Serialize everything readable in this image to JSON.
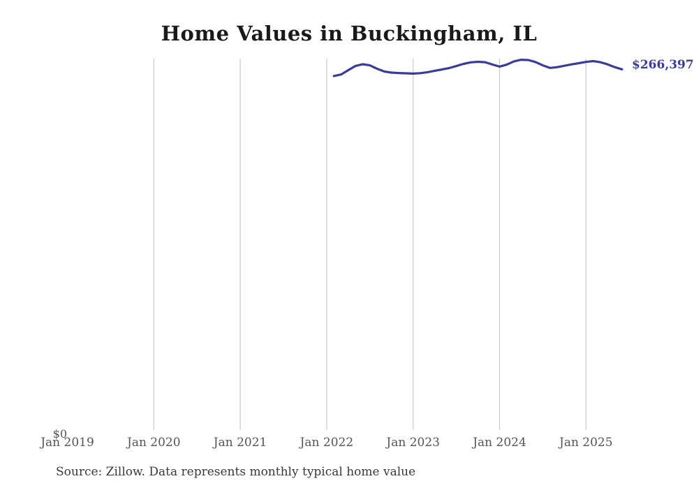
{
  "chart": {
    "title": "Home Values in Buckingham, IL",
    "y_zero_label": "$0",
    "end_label": "$266,397",
    "source_note": "Source: Zillow. Data represents monthly typical home value",
    "x_tick_labels": [
      "Jan 2019",
      "Jan 2020",
      "Jan 2021",
      "Jan 2022",
      "Jan 2023",
      "Jan 2024",
      "Jan 2025"
    ],
    "colors": {
      "line": "#3b3b99",
      "gridline": "#c9c9c9",
      "title_text": "#1a1a1a",
      "axis_text": "#555555",
      "source_text": "#383838"
    }
  },
  "chart_data": {
    "type": "line",
    "title": "Home Values in Buckingham, IL",
    "series_name": "Typical home value (monthly)",
    "x": [
      "2022-02",
      "2022-03",
      "2022-04",
      "2022-05",
      "2022-06",
      "2022-07",
      "2022-08",
      "2022-09",
      "2022-10",
      "2022-11",
      "2022-12",
      "2023-01",
      "2023-02",
      "2023-03",
      "2023-04",
      "2023-05",
      "2023-06",
      "2023-07",
      "2023-08",
      "2023-09",
      "2023-10",
      "2023-11",
      "2023-12",
      "2024-01",
      "2024-02",
      "2024-03",
      "2024-04",
      "2024-05",
      "2024-06",
      "2024-07",
      "2024-08",
      "2024-09",
      "2024-10",
      "2024-11",
      "2024-12",
      "2025-01",
      "2025-02",
      "2025-03",
      "2025-04",
      "2025-05",
      "2025-06"
    ],
    "values": [
      261500,
      262600,
      265800,
      268900,
      270100,
      269300,
      266800,
      264800,
      264000,
      263700,
      263500,
      263300,
      263600,
      264300,
      265300,
      266300,
      267300,
      268800,
      270400,
      271500,
      271900,
      271600,
      269900,
      268400,
      269800,
      272200,
      273400,
      273200,
      271700,
      269300,
      267400,
      268000,
      269000,
      270000,
      270900,
      271800,
      272400,
      271600,
      270000,
      268000,
      266397
    ],
    "last_value_label": "$266,397",
    "xlabel": "",
    "ylabel": "",
    "x_axis_ticks": [
      "Jan 2019",
      "Jan 2020",
      "Jan 2021",
      "Jan 2022",
      "Jan 2023",
      "Jan 2024",
      "Jan 2025"
    ],
    "ylim": [
      0,
      274000
    ],
    "grid": "vertical-only",
    "legend": "none"
  }
}
